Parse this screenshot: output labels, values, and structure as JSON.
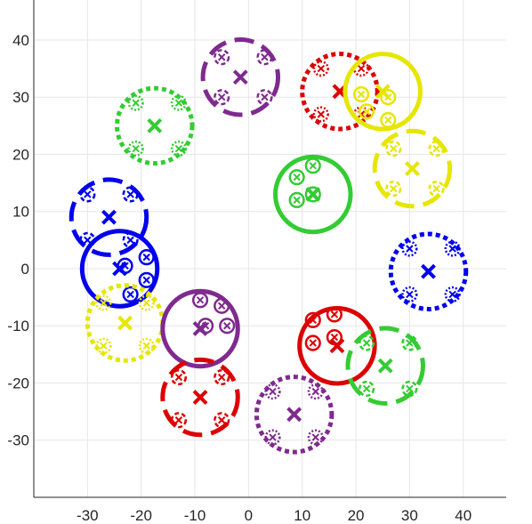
{
  "chart_data": {
    "type": "scatter",
    "title": "",
    "xlabel": "",
    "ylabel": "",
    "xlim": [
      -40,
      48
    ],
    "ylim": [
      -40,
      47
    ],
    "grid": true,
    "x_ticks": [
      -30,
      -20,
      -10,
      0,
      10,
      20,
      30,
      40
    ],
    "y_ticks": [
      -30,
      -20,
      -10,
      0,
      10,
      20,
      30,
      40
    ],
    "colors": {
      "red": "#dd0000",
      "yellow": "#e6e600",
      "green": "#33cc33",
      "blue": "#0000ee",
      "purple": "#7f2a8f"
    },
    "clusters": [
      {
        "color": "purple",
        "style": "dashed",
        "center": [
          -1.5,
          33.5
        ],
        "radius": 7,
        "subs": [
          [
            -5,
            37
          ],
          [
            3,
            37
          ],
          [
            -5,
            30
          ],
          [
            3,
            30
          ]
        ],
        "sub_radius": 1.3,
        "sub_style": "dashed"
      },
      {
        "color": "green",
        "style": "dotted",
        "center": [
          -17.5,
          25
        ],
        "radius": 7,
        "subs": [
          [
            -21,
            29
          ],
          [
            -13,
            29
          ],
          [
            -21,
            21
          ],
          [
            -13,
            21
          ]
        ],
        "sub_radius": 1.3,
        "sub_style": "dotted"
      },
      {
        "color": "red",
        "style": "dotted",
        "center": [
          17,
          31
        ],
        "radius": 7,
        "subs": [
          [
            13.5,
            35
          ],
          [
            21,
            35
          ],
          [
            13.5,
            27
          ],
          [
            21,
            27
          ]
        ],
        "sub_radius": 1.3,
        "sub_style": "dotted"
      },
      {
        "color": "yellow",
        "style": "solid",
        "center": [
          25,
          31
        ],
        "radius": 7,
        "subs": [
          [
            21,
            30.5
          ],
          [
            26,
            30
          ],
          [
            22,
            27.5
          ],
          [
            26,
            26
          ]
        ],
        "sub_radius": 1.3,
        "sub_style": "solid"
      },
      {
        "color": "yellow",
        "style": "dashed",
        "center": [
          30.5,
          17.5
        ],
        "radius": 7,
        "subs": [
          [
            27,
            21
          ],
          [
            35,
            21
          ],
          [
            27,
            14
          ],
          [
            35,
            14
          ]
        ],
        "sub_radius": 1.3,
        "sub_style": "dashed"
      },
      {
        "color": "green",
        "style": "solid",
        "center": [
          12,
          13
        ],
        "radius": 7,
        "subs": [
          [
            12,
            18
          ],
          [
            9,
            16
          ],
          [
            9,
            12
          ],
          [
            12,
            13
          ]
        ],
        "sub_radius": 1.3,
        "sub_style": "solid"
      },
      {
        "color": "blue",
        "style": "dashed",
        "center": [
          -26,
          9
        ],
        "radius": 7,
        "subs": [
          [
            -30,
            13
          ],
          [
            -22,
            13
          ],
          [
            -30,
            5
          ],
          [
            -22,
            5
          ]
        ],
        "sub_radius": 1.3,
        "sub_style": "dashed"
      },
      {
        "color": "blue",
        "style": "solid",
        "center": [
          -24,
          0
        ],
        "radius": 7,
        "subs": [
          [
            -23,
            0.5
          ],
          [
            -19,
            2
          ],
          [
            -22,
            -4.5
          ],
          [
            -19,
            -2
          ]
        ],
        "sub_radius": 1.3,
        "sub_style": "solid"
      },
      {
        "color": "blue",
        "style": "dotted",
        "center": [
          33.5,
          -0.5
        ],
        "radius": 7,
        "subs": [
          [
            30,
            3.5
          ],
          [
            38,
            3.5
          ],
          [
            30,
            -4.5
          ],
          [
            38,
            -4.5
          ]
        ],
        "sub_radius": 1.3,
        "sub_style": "dotted"
      },
      {
        "color": "yellow",
        "style": "dotted",
        "center": [
          -23,
          -9.5
        ],
        "radius": 7,
        "subs": [
          [
            -27,
            -6
          ],
          [
            -19,
            -6
          ],
          [
            -27,
            -13.5
          ],
          [
            -19,
            -13.5
          ]
        ],
        "sub_radius": 1.3,
        "sub_style": "dotted"
      },
      {
        "color": "purple",
        "style": "solid",
        "center": [
          -9,
          -10.5
        ],
        "radius": 7,
        "subs": [
          [
            -9,
            -5.5
          ],
          [
            -5,
            -6.5
          ],
          [
            -8,
            -10
          ],
          [
            -4,
            -10
          ]
        ],
        "sub_radius": 1.3,
        "sub_style": "solid"
      },
      {
        "color": "red",
        "style": "solid",
        "center": [
          16.5,
          -13.5
        ],
        "radius": 7,
        "subs": [
          [
            12,
            -9
          ],
          [
            16,
            -8
          ],
          [
            12,
            -13
          ],
          [
            16,
            -12
          ]
        ],
        "sub_radius": 1.3,
        "sub_style": "solid"
      },
      {
        "color": "green",
        "style": "dashed",
        "center": [
          25.5,
          -17
        ],
        "radius": 7,
        "subs": [
          [
            22,
            -13
          ],
          [
            30,
            -13
          ],
          [
            22,
            -21
          ],
          [
            30,
            -21
          ]
        ],
        "sub_radius": 1.3,
        "sub_style": "dashed"
      },
      {
        "color": "red",
        "style": "dashed",
        "center": [
          -9,
          -22.5
        ],
        "radius": 7,
        "subs": [
          [
            -13,
            -19
          ],
          [
            -5,
            -19
          ],
          [
            -13,
            -26.5
          ],
          [
            -5,
            -26.5
          ]
        ],
        "sub_radius": 1.3,
        "sub_style": "dashed"
      },
      {
        "color": "purple",
        "style": "dotted",
        "center": [
          8.5,
          -25.5
        ],
        "radius": 7,
        "subs": [
          [
            4.5,
            -21.5
          ],
          [
            12.5,
            -21.5
          ],
          [
            4.5,
            -29.5
          ],
          [
            12.5,
            -29.5
          ]
        ],
        "sub_radius": 1.3,
        "sub_style": "dotted"
      }
    ]
  }
}
